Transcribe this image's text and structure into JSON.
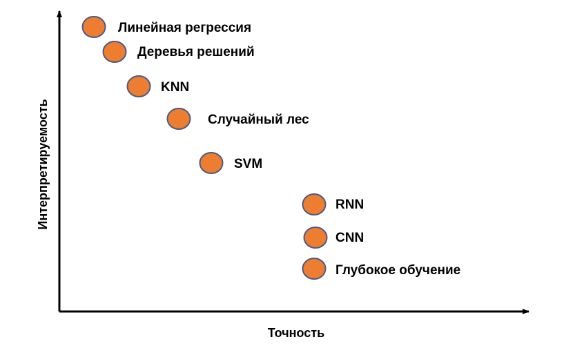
{
  "axes": {
    "x_label": "Точность",
    "y_label": "Интерпретируемость"
  },
  "colors": {
    "marker_fill": "#ed7d31",
    "marker_stroke": "#4a5a82",
    "axis": "#000000"
  },
  "items": [
    {
      "label": "Линейная регрессия",
      "accuracy_rank": 1,
      "interpretability_rank": 8
    },
    {
      "label": "Деревья решений",
      "accuracy_rank": 2,
      "interpretability_rank": 7
    },
    {
      "label": "KNN",
      "accuracy_rank": 3,
      "interpretability_rank": 6
    },
    {
      "label": "Случайный лес",
      "accuracy_rank": 4,
      "interpretability_rank": 5
    },
    {
      "label": "SVM",
      "accuracy_rank": 5,
      "interpretability_rank": 4
    },
    {
      "label": "RNN",
      "accuracy_rank": 6,
      "interpretability_rank": 3
    },
    {
      "label": "CNN",
      "accuracy_rank": 6,
      "interpretability_rank": 2
    },
    {
      "label": "Глубокое обучение",
      "accuracy_rank": 6,
      "interpretability_rank": 1
    }
  ]
}
